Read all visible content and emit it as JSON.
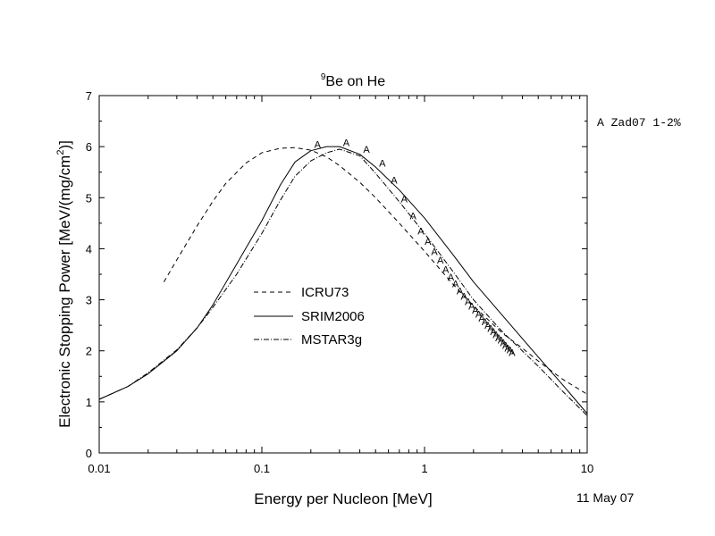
{
  "chart_data": {
    "type": "line",
    "title": "Be on He",
    "title_superscript": "9",
    "xlabel": "Energy per Nucleon [MeV]",
    "ylabel": "Electronic Stopping Power [MeV/(mg/cm",
    "ylabel_superscript": "2",
    "ylabel_suffix": ")]",
    "x_scale": "log",
    "xlim": [
      0.01,
      10
    ],
    "ylim": [
      0,
      7
    ],
    "x_ticks": [
      0.01,
      0.1,
      1,
      10
    ],
    "x_tick_labels": [
      "0.01",
      "0.1",
      "1",
      "10"
    ],
    "y_ticks": [
      0,
      1,
      2,
      3,
      4,
      5,
      6,
      7
    ],
    "y_tick_labels": [
      "0",
      "1",
      "2",
      "3",
      "4",
      "5",
      "6",
      "7"
    ],
    "grid": false,
    "legend_placement": "center",
    "series": [
      {
        "name": "ICRU73",
        "style": "dashed",
        "points": [
          [
            0.025,
            3.35
          ],
          [
            0.03,
            3.78
          ],
          [
            0.04,
            4.45
          ],
          [
            0.05,
            4.93
          ],
          [
            0.06,
            5.28
          ],
          [
            0.08,
            5.68
          ],
          [
            0.1,
            5.88
          ],
          [
            0.13,
            5.97
          ],
          [
            0.16,
            5.98
          ],
          [
            0.2,
            5.93
          ],
          [
            0.25,
            5.8
          ],
          [
            0.3,
            5.63
          ],
          [
            0.4,
            5.3
          ],
          [
            0.5,
            5.0
          ],
          [
            0.7,
            4.5
          ],
          [
            1,
            3.95
          ],
          [
            1.5,
            3.3
          ],
          [
            2,
            2.88
          ],
          [
            3,
            2.35
          ],
          [
            4,
            2.05
          ],
          [
            5,
            1.8
          ],
          [
            7,
            1.45
          ],
          [
            10,
            1.15
          ]
        ]
      },
      {
        "name": "SRIM2006",
        "style": "solid",
        "points": [
          [
            0.01,
            1.05
          ],
          [
            0.015,
            1.3
          ],
          [
            0.02,
            1.55
          ],
          [
            0.03,
            2.0
          ],
          [
            0.04,
            2.45
          ],
          [
            0.05,
            2.9
          ],
          [
            0.07,
            3.7
          ],
          [
            0.1,
            4.55
          ],
          [
            0.13,
            5.25
          ],
          [
            0.16,
            5.7
          ],
          [
            0.2,
            5.92
          ],
          [
            0.25,
            6.0
          ],
          [
            0.3,
            6.0
          ],
          [
            0.4,
            5.85
          ],
          [
            0.5,
            5.6
          ],
          [
            0.7,
            5.15
          ],
          [
            1,
            4.6
          ],
          [
            1.5,
            3.88
          ],
          [
            2,
            3.35
          ],
          [
            3,
            2.7
          ],
          [
            5,
            1.88
          ],
          [
            7,
            1.35
          ],
          [
            10,
            0.77
          ]
        ]
      },
      {
        "name": "MSTAR3g",
        "style": "dash-dot",
        "points": [
          [
            0.01,
            1.05
          ],
          [
            0.015,
            1.3
          ],
          [
            0.02,
            1.57
          ],
          [
            0.03,
            2.02
          ],
          [
            0.04,
            2.45
          ],
          [
            0.05,
            2.85
          ],
          [
            0.07,
            3.5
          ],
          [
            0.1,
            4.3
          ],
          [
            0.13,
            4.95
          ],
          [
            0.16,
            5.42
          ],
          [
            0.2,
            5.72
          ],
          [
            0.25,
            5.88
          ],
          [
            0.3,
            5.95
          ],
          [
            0.4,
            5.82
          ],
          [
            0.5,
            5.48
          ],
          [
            0.7,
            4.92
          ],
          [
            1,
            4.3
          ],
          [
            1.5,
            3.55
          ],
          [
            2,
            3.0
          ],
          [
            3,
            2.38
          ],
          [
            5,
            1.7
          ],
          [
            7,
            1.22
          ],
          [
            10,
            0.73
          ]
        ]
      },
      {
        "name": "Zad07 1-2%",
        "symbol": "A",
        "style": "markers",
        "points": [
          [
            0.22,
            6.05
          ],
          [
            0.33,
            6.08
          ],
          [
            0.44,
            5.95
          ],
          [
            0.55,
            5.68
          ],
          [
            0.65,
            5.35
          ],
          [
            0.75,
            4.98
          ],
          [
            0.85,
            4.65
          ],
          [
            0.95,
            4.35
          ],
          [
            1.05,
            4.15
          ],
          [
            1.15,
            3.95
          ],
          [
            1.25,
            3.78
          ],
          [
            1.35,
            3.6
          ],
          [
            1.45,
            3.45
          ],
          [
            1.55,
            3.32
          ],
          [
            1.65,
            3.18
          ],
          [
            1.75,
            3.07
          ],
          [
            1.85,
            2.97
          ],
          [
            1.95,
            2.88
          ],
          [
            2.05,
            2.8
          ],
          [
            2.15,
            2.72
          ],
          [
            2.25,
            2.64
          ],
          [
            2.35,
            2.57
          ],
          [
            2.45,
            2.5
          ],
          [
            2.55,
            2.44
          ],
          [
            2.65,
            2.38
          ],
          [
            2.75,
            2.32
          ],
          [
            2.85,
            2.26
          ],
          [
            2.95,
            2.21
          ],
          [
            3.05,
            2.16
          ],
          [
            3.15,
            2.11
          ],
          [
            3.25,
            2.06
          ],
          [
            3.35,
            2.02
          ],
          [
            3.45,
            1.97
          ]
        ]
      }
    ],
    "marker_legend_label": "A Zad07 1-2%",
    "date_stamp": "11 May 07"
  }
}
